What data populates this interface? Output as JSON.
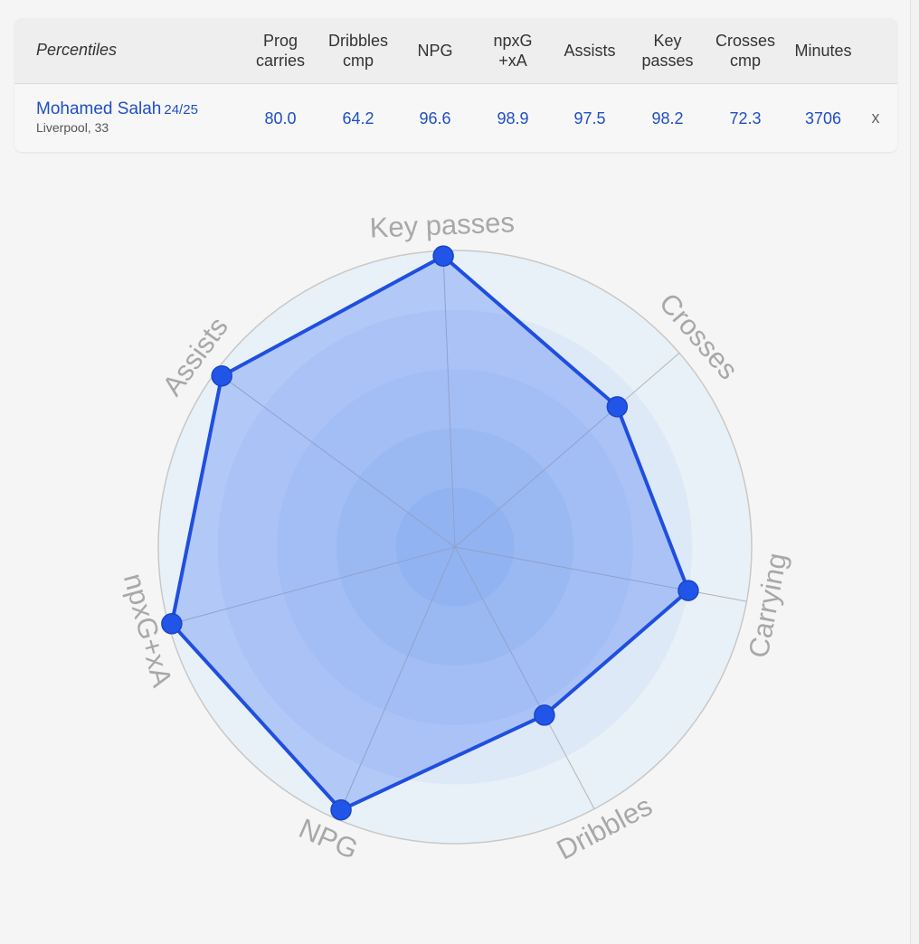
{
  "table": {
    "header_label": "Percentiles",
    "columns": [
      "Prog\ncarries",
      "Dribbles\ncmp",
      "NPG",
      "npxG\n+xA",
      "Assists",
      "Key\npasses",
      "Crosses\ncmp",
      "Minutes"
    ],
    "player": {
      "name": "Mohamed Salah",
      "season": "24/25",
      "club": "Liverpool, 33",
      "values": [
        "80.0",
        "64.2",
        "96.6",
        "98.9",
        "97.5",
        "98.2",
        "72.3",
        "3706"
      ]
    },
    "close_label": "x"
  },
  "chart_data": {
    "type": "radar",
    "range": [
      0,
      100
    ],
    "grid_rings": 5,
    "axes": [
      "Key passes",
      "Crosses",
      "Carrying",
      "Dribbles",
      "NPG",
      "npxG+xA",
      "Assists"
    ],
    "values": [
      98.2,
      72.3,
      80.0,
      64.2,
      96.6,
      98.9,
      97.5
    ],
    "colors": {
      "line": "#1f4fe0",
      "fill": "#4d7cf5",
      "point": "#2055e8",
      "ring": "#aec9ee",
      "label": "#a8a8a8"
    }
  }
}
